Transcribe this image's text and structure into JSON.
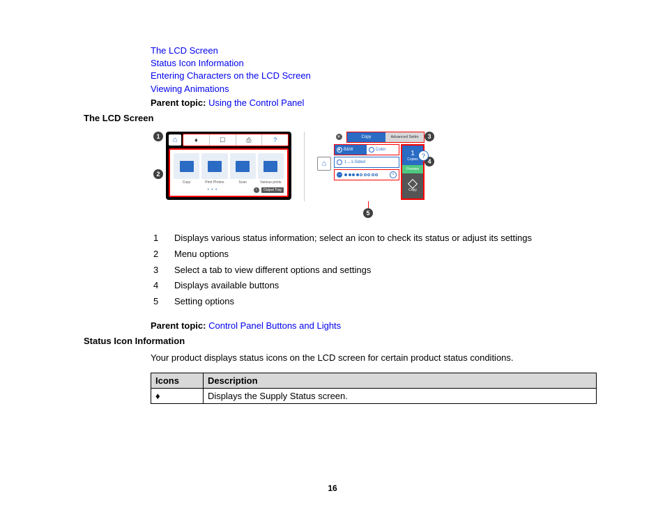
{
  "toc": {
    "link1": "The LCD Screen",
    "link2": "Status Icon Information",
    "link3": "Entering Characters on the LCD Screen",
    "link4": "Viewing Animations"
  },
  "parent1": {
    "label": "Parent topic:",
    "link": "Using the Control Panel"
  },
  "heading1": "The LCD Screen",
  "figure": {
    "callouts": {
      "c1": "1",
      "c2": "2",
      "c3": "3",
      "c4": "4",
      "c5": "5"
    },
    "left_screen": {
      "home_glyph": "⌂",
      "status_cells": {
        "s1": "♦",
        "s2": "☐",
        "s3": "⎙",
        "s4": "?"
      },
      "tile_labels": {
        "t1": "Copy",
        "t2": "Print Photos",
        "t3": "Scan",
        "t4": "Various prints"
      },
      "dots": "• • •",
      "chip": "Output Tray",
      "arrow": "›"
    },
    "right_screen": {
      "close": "✕",
      "tab1": "Copy",
      "tab2": "Advanced Settin",
      "bw": "B&W",
      "color": "Color",
      "sided": "1→1-Sided",
      "minus": "–",
      "plus": "+",
      "side_top_n": "1",
      "side_top_l": "Copies",
      "side_mid": "Preview",
      "side_bot_l": "Copy",
      "help": "?"
    }
  },
  "numlist": {
    "rows": [
      {
        "n": "1",
        "t": "Displays various status information; select an icon to check its status or adjust its settings"
      },
      {
        "n": "2",
        "t": "Menu options"
      },
      {
        "n": "3",
        "t": "Select a tab to view different options and settings"
      },
      {
        "n": "4",
        "t": "Displays available buttons"
      },
      {
        "n": "5",
        "t": "Setting options"
      }
    ]
  },
  "parent2": {
    "label": "Parent topic:",
    "link": "Control Panel Buttons and Lights"
  },
  "heading2": "Status Icon Information",
  "intro": "Your product displays status icons on the LCD screen for certain product status conditions.",
  "table": {
    "h1": "Icons",
    "h2": "Description",
    "row1_icon": "♦",
    "row1_desc": "Displays the Supply Status screen."
  },
  "page_number": "16",
  "colors": {
    "link": "#0000ee",
    "callout_red": "#f00",
    "brand_blue": "#2a6bc4",
    "preview_green": "#4fc97f",
    "table_header_bg": "#d8d8d8"
  }
}
